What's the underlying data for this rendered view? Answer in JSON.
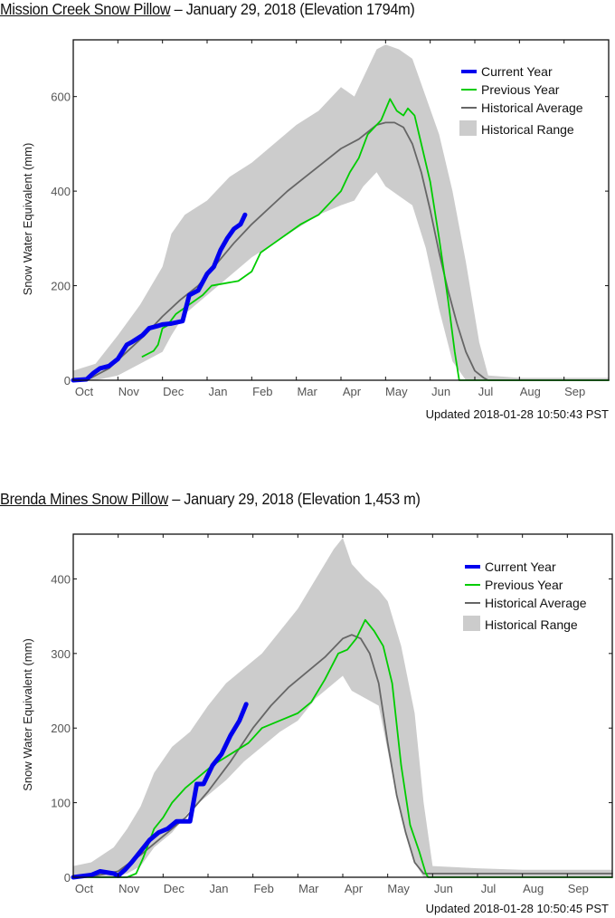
{
  "charts": [
    {
      "station_link": "Mission Creek Snow Pillow",
      "title_rest": " – January 29, 2018 (Elevation 1794m)",
      "updated": "Updated 2018-01-28 10:50:43 PST"
    },
    {
      "station_link": "Brenda Mines Snow Pillow",
      "title_rest": " – January 29, 2018 (Elevation 1,453 m)",
      "updated": "Updated 2018-01-28 10:50:45 PST"
    }
  ],
  "colors": {
    "current": "#0000ee",
    "previous": "#00cc00",
    "average": "#666666",
    "range": "#cccccc"
  },
  "chart_data": [
    {
      "type": "line",
      "title": "Mission Creek Snow Pillow – January 29, 2018 (Elevation 1794m)",
      "xlabel": "",
      "ylabel": "Snow Water Equivalent (mm)",
      "x_unit": "months since Oct 1",
      "xlim": [
        0,
        12
      ],
      "ylim": [
        0,
        720
      ],
      "x_ticks": [
        "Oct",
        "Nov",
        "Dec",
        "Jan",
        "Feb",
        "Mar",
        "Apr",
        "May",
        "Jun",
        "Jul",
        "Aug",
        "Sep"
      ],
      "y_ticks": [
        0,
        200,
        400,
        600
      ],
      "grid": false,
      "legend": {
        "position": "top-right",
        "entries": [
          "Current Year",
          "Previous Year",
          "Historical Average",
          "Historical Range"
        ]
      },
      "series": [
        {
          "name": "Current Year",
          "key": "current",
          "x": [
            0,
            0.3,
            0.45,
            0.6,
            0.8,
            1.0,
            1.2,
            1.3,
            1.55,
            1.7,
            1.9,
            2.0,
            2.2,
            2.45,
            2.6,
            2.8,
            3.0,
            3.15,
            3.3,
            3.45,
            3.6,
            3.75,
            3.85
          ],
          "y": [
            0,
            2,
            15,
            25,
            30,
            45,
            75,
            80,
            95,
            110,
            115,
            118,
            120,
            125,
            180,
            190,
            225,
            240,
            275,
            300,
            320,
            330,
            350
          ]
        },
        {
          "name": "Previous Year",
          "key": "previous",
          "x": [
            1.55,
            1.8,
            1.9,
            2.0,
            2.1,
            2.3,
            2.6,
            2.9,
            3.1,
            3.4,
            3.7,
            4.0,
            4.2,
            4.5,
            4.8,
            5.1,
            5.5,
            5.8,
            6.0,
            6.2,
            6.4,
            6.6,
            6.9,
            7.1,
            7.25,
            7.4,
            7.5,
            7.65,
            7.8,
            8.0,
            8.2,
            8.4,
            8.55,
            8.65,
            8.8,
            12
          ],
          "y": [
            50,
            62,
            75,
            110,
            115,
            140,
            160,
            180,
            200,
            205,
            210,
            230,
            270,
            290,
            310,
            330,
            350,
            380,
            400,
            440,
            470,
            520,
            550,
            595,
            570,
            560,
            575,
            560,
            500,
            420,
            300,
            170,
            60,
            0,
            0,
            0
          ]
        },
        {
          "name": "Historical Average",
          "key": "average",
          "x": [
            0,
            0.4,
            0.8,
            1.2,
            1.6,
            2.0,
            2.4,
            2.8,
            3.2,
            3.6,
            4.0,
            4.4,
            4.8,
            5.2,
            5.6,
            6.0,
            6.4,
            6.8,
            7.0,
            7.2,
            7.4,
            7.6,
            7.8,
            8.0,
            8.2,
            8.4,
            8.6,
            8.8,
            9.0,
            9.2,
            9.3,
            12
          ],
          "y": [
            0,
            5,
            25,
            60,
            95,
            135,
            170,
            200,
            245,
            290,
            330,
            365,
            400,
            430,
            460,
            490,
            510,
            540,
            545,
            545,
            535,
            500,
            440,
            360,
            270,
            190,
            120,
            60,
            20,
            5,
            0,
            0
          ]
        },
        {
          "name": "Historical Range",
          "key": "range",
          "x": [
            0,
            0.5,
            1.0,
            1.5,
            2.0,
            2.2,
            2.5,
            3.0,
            3.5,
            4.0,
            4.5,
            5.0,
            5.5,
            6.0,
            6.3,
            6.5,
            6.8,
            7.0,
            7.3,
            7.6,
            7.9,
            8.2,
            8.5,
            8.8,
            9.1,
            9.3,
            10,
            11,
            12
          ],
          "y_low": [
            0,
            0,
            10,
            35,
            60,
            95,
            140,
            180,
            220,
            260,
            290,
            320,
            350,
            370,
            380,
            410,
            440,
            410,
            390,
            370,
            280,
            150,
            40,
            0,
            0,
            0,
            0,
            0,
            0
          ],
          "y_high": [
            20,
            35,
            95,
            160,
            240,
            310,
            350,
            380,
            430,
            460,
            500,
            540,
            570,
            620,
            600,
            640,
            700,
            710,
            700,
            680,
            600,
            520,
            400,
            250,
            80,
            10,
            5,
            5,
            5
          ]
        }
      ]
    },
    {
      "type": "line",
      "title": "Brenda Mines Snow Pillow – January 29, 2018 (Elevation 1,453 m)",
      "xlabel": "",
      "ylabel": "Snow Water Equivalent (mm)",
      "x_unit": "months since Oct 1",
      "xlim": [
        0,
        12
      ],
      "ylim": [
        0,
        460
      ],
      "x_ticks": [
        "Oct",
        "Nov",
        "Dec",
        "Jan",
        "Feb",
        "Mar",
        "Apr",
        "May",
        "Jun",
        "Jul",
        "Aug",
        "Sep"
      ],
      "y_ticks": [
        0,
        100,
        200,
        300,
        400
      ],
      "grid": false,
      "legend": {
        "position": "top-right",
        "entries": [
          "Current Year",
          "Previous Year",
          "Historical Average",
          "Historical Range"
        ]
      },
      "series": [
        {
          "name": "Current Year",
          "key": "current",
          "x": [
            0,
            0.4,
            0.6,
            0.9,
            1.0,
            1.15,
            1.3,
            1.5,
            1.7,
            1.9,
            2.1,
            2.3,
            2.6,
            2.75,
            2.9,
            3.1,
            3.3,
            3.5,
            3.7,
            3.85
          ],
          "y": [
            0,
            3,
            8,
            5,
            2,
            10,
            20,
            35,
            50,
            60,
            65,
            75,
            75,
            125,
            125,
            150,
            165,
            190,
            210,
            232
          ]
        },
        {
          "name": "Previous Year",
          "key": "previous",
          "x": [
            0,
            1.2,
            1.4,
            1.55,
            1.8,
            2.0,
            2.2,
            2.5,
            2.8,
            3.1,
            3.5,
            3.9,
            4.2,
            4.6,
            5.0,
            5.3,
            5.6,
            5.9,
            6.1,
            6.3,
            6.5,
            6.7,
            6.9,
            7.1,
            7.3,
            7.5,
            7.7,
            7.85,
            7.9,
            12
          ],
          "y": [
            0,
            0,
            5,
            25,
            65,
            80,
            100,
            120,
            135,
            150,
            165,
            180,
            200,
            210,
            220,
            235,
            265,
            300,
            305,
            320,
            345,
            330,
            310,
            260,
            150,
            70,
            35,
            5,
            0,
            0
          ]
        },
        {
          "name": "Historical Average",
          "key": "average",
          "x": [
            0,
            0.5,
            1.0,
            1.5,
            2.0,
            2.5,
            3.0,
            3.5,
            4.0,
            4.4,
            4.8,
            5.2,
            5.6,
            6.0,
            6.2,
            6.4,
            6.6,
            6.8,
            7.0,
            7.2,
            7.4,
            7.6,
            7.8,
            8.0,
            12
          ],
          "y": [
            0,
            2,
            8,
            30,
            55,
            80,
            115,
            155,
            200,
            230,
            255,
            275,
            295,
            320,
            325,
            320,
            300,
            260,
            180,
            110,
            60,
            20,
            5,
            5,
            5
          ]
        },
        {
          "name": "Historical Range",
          "key": "range",
          "x": [
            0,
            0.4,
            0.9,
            1.2,
            1.5,
            1.8,
            2.2,
            2.6,
            3.0,
            3.4,
            3.8,
            4.2,
            4.6,
            5.0,
            5.4,
            5.8,
            6.0,
            6.2,
            6.5,
            6.8,
            7.0,
            7.3,
            7.6,
            7.8,
            8.0,
            9,
            10,
            11,
            12
          ],
          "y_low": [
            0,
            0,
            0,
            5,
            15,
            40,
            60,
            90,
            110,
            130,
            155,
            175,
            195,
            210,
            240,
            260,
            270,
            250,
            240,
            230,
            170,
            80,
            20,
            0,
            0,
            0,
            0,
            0,
            0
          ],
          "y_high": [
            15,
            20,
            40,
            65,
            95,
            140,
            175,
            195,
            230,
            260,
            280,
            300,
            330,
            360,
            400,
            440,
            455,
            420,
            400,
            385,
            370,
            310,
            220,
            100,
            15,
            12,
            10,
            10,
            10
          ]
        }
      ]
    }
  ]
}
